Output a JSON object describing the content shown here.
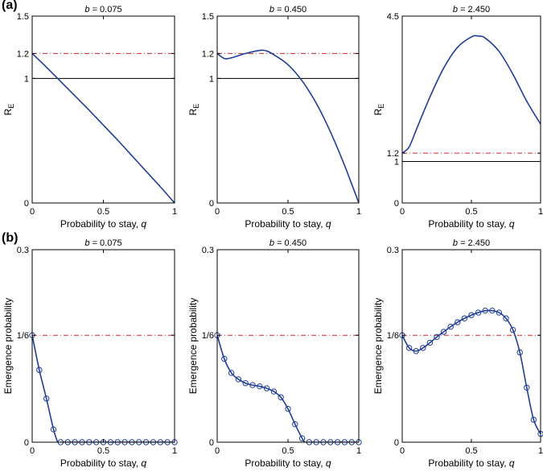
{
  "figure": {
    "row_labels": [
      "(a)",
      "(b)"
    ]
  },
  "colors": {
    "curve": "#1f3d99",
    "threshold": "#d62728",
    "axis": "#000000"
  },
  "chart_data": [
    {
      "type": "line",
      "row": 0,
      "col": 0,
      "title_prefix": "b",
      "title_value": " = 0.075",
      "xlabel_prefix": "Probability to stay, ",
      "xlabel_var": "q",
      "ylabel_main": "R",
      "ylabel_sub": "E",
      "xlim": [
        0,
        1
      ],
      "ylim": [
        0,
        1.5
      ],
      "xticks": [
        0,
        0.5,
        1
      ],
      "xticklabels": [
        "0",
        "0.5",
        "1"
      ],
      "yticks": [
        0,
        1,
        1.2,
        1.5
      ],
      "yticklabels": [
        "0",
        "1",
        "1.2",
        "1.5"
      ],
      "reference_lines": [
        {
          "y": 1.2,
          "style": "dashdot",
          "color": "threshold"
        },
        {
          "y": 1.0,
          "style": "solid",
          "color": "axis"
        }
      ],
      "series": [
        {
          "name": "R_E",
          "x": [
            0,
            0.1,
            0.2,
            0.3,
            0.4,
            0.5,
            0.6,
            0.7,
            0.8,
            0.9,
            1.0
          ],
          "y": [
            1.2,
            1.09,
            0.975,
            0.86,
            0.745,
            0.625,
            0.505,
            0.38,
            0.255,
            0.13,
            0.0
          ]
        }
      ]
    },
    {
      "type": "line",
      "row": 0,
      "col": 1,
      "title_prefix": "b",
      "title_value": " = 0.450",
      "xlabel_prefix": "Probability to stay, ",
      "xlabel_var": "q",
      "ylabel_main": "R",
      "ylabel_sub": "E",
      "xlim": [
        0,
        1
      ],
      "ylim": [
        0,
        1.5
      ],
      "xticks": [
        0,
        0.5,
        1
      ],
      "xticklabels": [
        "0",
        "0.5",
        "1"
      ],
      "yticks": [
        0,
        1,
        1.2,
        1.5
      ],
      "yticklabels": [
        "0",
        "1",
        "1.2",
        "1.5"
      ],
      "reference_lines": [
        {
          "y": 1.2,
          "style": "dashdot",
          "color": "threshold"
        },
        {
          "y": 1.0,
          "style": "solid",
          "color": "axis"
        }
      ],
      "series": [
        {
          "name": "R_E",
          "x": [
            0,
            0.05,
            0.1,
            0.2,
            0.3,
            0.35,
            0.4,
            0.5,
            0.6,
            0.7,
            0.8,
            0.9,
            1.0
          ],
          "y": [
            1.2,
            1.16,
            1.165,
            1.2,
            1.225,
            1.22,
            1.19,
            1.11,
            0.98,
            0.8,
            0.57,
            0.3,
            0.0
          ]
        }
      ]
    },
    {
      "type": "line",
      "row": 0,
      "col": 2,
      "title_prefix": "b",
      "title_value": " = 2.450",
      "xlabel_prefix": "Probability to stay, ",
      "xlabel_var": "q",
      "ylabel_main": "R",
      "ylabel_sub": "E",
      "xlim": [
        0,
        1
      ],
      "ylim": [
        0,
        4.5
      ],
      "xticks": [
        0,
        0.5,
        1
      ],
      "xticklabels": [
        "0",
        "0.5",
        "1"
      ],
      "yticks": [
        0,
        1,
        1.2,
        4.5
      ],
      "yticklabels": [
        "0",
        "1",
        "1.2",
        "4.5"
      ],
      "reference_lines": [
        {
          "y": 1.2,
          "style": "dashdot",
          "color": "threshold"
        },
        {
          "y": 1.0,
          "style": "solid",
          "color": "axis"
        }
      ],
      "series": [
        {
          "name": "R_E",
          "x": [
            0,
            0.05,
            0.1,
            0.2,
            0.3,
            0.4,
            0.5,
            0.55,
            0.6,
            0.7,
            0.8,
            0.9,
            1.0
          ],
          "y": [
            1.2,
            1.35,
            1.75,
            2.55,
            3.25,
            3.75,
            4.0,
            4.02,
            3.97,
            3.65,
            3.1,
            2.45,
            1.9
          ]
        }
      ]
    },
    {
      "type": "line",
      "row": 1,
      "col": 0,
      "title_prefix": "b",
      "title_value": " = 0.075",
      "xlabel_prefix": "Probability to stay, ",
      "xlabel_var": "q",
      "ylabel_main": "Emergence probability",
      "ylabel_sub": "",
      "xlim": [
        0,
        1
      ],
      "ylim": [
        0,
        0.3
      ],
      "xticks": [
        0,
        0.5,
        1
      ],
      "xticklabels": [
        "0",
        "0.5",
        "1"
      ],
      "yticks": [
        0,
        0.1667,
        0.3
      ],
      "yticklabels": [
        "0",
        "1/6",
        "0.3"
      ],
      "reference_lines": [
        {
          "y": 0.1667,
          "style": "dashdot",
          "color": "threshold"
        }
      ],
      "series": [
        {
          "name": "theory",
          "x": [
            0,
            0.05,
            0.1,
            0.15,
            0.18,
            0.2,
            0.25,
            0.3,
            0.35,
            0.4,
            0.45,
            0.5,
            0.55,
            0.6,
            0.65,
            0.7,
            0.75,
            0.8,
            0.85,
            0.9,
            0.95,
            1.0
          ],
          "y": [
            0.1667,
            0.1125,
            0.068,
            0.02,
            0.0,
            0.0,
            0.0,
            0.0,
            0.0,
            0.0,
            0.0,
            0.0,
            0.0,
            0.0,
            0.0,
            0.0,
            0.0,
            0.0,
            0.0,
            0.0,
            0.0,
            0.0
          ]
        }
      ],
      "markers": {
        "name": "simulation",
        "x": [
          0,
          0.05,
          0.1,
          0.15,
          0.2,
          0.25,
          0.3,
          0.35,
          0.4,
          0.45,
          0.5,
          0.55,
          0.6,
          0.65,
          0.7,
          0.75,
          0.8,
          0.85,
          0.9,
          0.95,
          1.0
        ],
        "y": [
          0.1667,
          0.1125,
          0.068,
          0.02,
          0.0,
          0.0,
          0.0,
          0.0,
          0.0,
          0.0,
          0.0,
          0.0,
          0.0,
          0.0,
          0.0,
          0.0,
          0.0,
          0.0,
          0.0,
          0.0,
          0.0
        ]
      }
    },
    {
      "type": "line",
      "row": 1,
      "col": 1,
      "title_prefix": "b",
      "title_value": " = 0.450",
      "xlabel_prefix": "Probability to stay, ",
      "xlabel_var": "q",
      "ylabel_main": "Emergence probability",
      "ylabel_sub": "",
      "xlim": [
        0,
        1
      ],
      "ylim": [
        0,
        0.3
      ],
      "xticks": [
        0,
        0.5,
        1
      ],
      "xticklabels": [
        "0",
        "0.5",
        "1"
      ],
      "yticks": [
        0,
        0.1667,
        0.3
      ],
      "yticklabels": [
        "0",
        "1/6",
        "0.3"
      ],
      "reference_lines": [
        {
          "y": 0.1667,
          "style": "dashdot",
          "color": "threshold"
        }
      ],
      "series": [
        {
          "name": "theory",
          "x": [
            0,
            0.05,
            0.1,
            0.15,
            0.2,
            0.25,
            0.3,
            0.35,
            0.4,
            0.45,
            0.5,
            0.55,
            0.6,
            0.62,
            0.65,
            0.7,
            0.75,
            0.8,
            0.85,
            0.9,
            0.95,
            1.0
          ],
          "y": [
            0.1667,
            0.13,
            0.108,
            0.098,
            0.092,
            0.089,
            0.087,
            0.084,
            0.079,
            0.07,
            0.052,
            0.028,
            0.006,
            0.0,
            0.0,
            0.0,
            0.0,
            0.0,
            0.0,
            0.0,
            0.0,
            0.0
          ]
        }
      ],
      "markers": {
        "name": "simulation",
        "x": [
          0,
          0.05,
          0.1,
          0.15,
          0.2,
          0.25,
          0.3,
          0.35,
          0.4,
          0.45,
          0.5,
          0.55,
          0.6,
          0.65,
          0.7,
          0.75,
          0.8,
          0.85,
          0.9,
          0.95,
          1.0
        ],
        "y": [
          0.1667,
          0.13,
          0.108,
          0.098,
          0.092,
          0.089,
          0.087,
          0.084,
          0.079,
          0.07,
          0.052,
          0.028,
          0.006,
          0.0,
          0.0,
          0.0,
          0.0,
          0.0,
          0.0,
          0.0,
          0.0
        ]
      }
    },
    {
      "type": "line",
      "row": 1,
      "col": 2,
      "title_prefix": "b",
      "title_value": " = 2.450",
      "xlabel_prefix": "Probability to stay, ",
      "xlabel_var": "q",
      "ylabel_main": "Emergence probability",
      "ylabel_sub": "",
      "xlim": [
        0,
        1
      ],
      "ylim": [
        0,
        0.3
      ],
      "xticks": [
        0,
        0.5,
        1
      ],
      "xticklabels": [
        "0",
        "0.5",
        "1"
      ],
      "yticks": [
        0,
        0.1667,
        0.3
      ],
      "yticklabels": [
        "0",
        "1/6",
        "0.3"
      ],
      "reference_lines": [
        {
          "y": 0.1667,
          "style": "dashdot",
          "color": "threshold"
        }
      ],
      "series": [
        {
          "name": "theory",
          "x": [
            0,
            0.05,
            0.1,
            0.15,
            0.2,
            0.25,
            0.3,
            0.35,
            0.4,
            0.45,
            0.5,
            0.55,
            0.6,
            0.65,
            0.7,
            0.75,
            0.8,
            0.85,
            0.9,
            0.95,
            1.0
          ],
          "y": [
            0.1667,
            0.147,
            0.142,
            0.147,
            0.155,
            0.164,
            0.172,
            0.18,
            0.187,
            0.193,
            0.198,
            0.202,
            0.205,
            0.205,
            0.202,
            0.193,
            0.175,
            0.14,
            0.085,
            0.035,
            0.013
          ]
        }
      ],
      "markers": {
        "name": "simulation",
        "x": [
          0,
          0.05,
          0.1,
          0.15,
          0.2,
          0.25,
          0.3,
          0.35,
          0.4,
          0.45,
          0.5,
          0.55,
          0.6,
          0.65,
          0.7,
          0.75,
          0.8,
          0.85,
          0.9,
          0.95,
          1.0
        ],
        "y": [
          0.1667,
          0.147,
          0.142,
          0.147,
          0.155,
          0.164,
          0.172,
          0.18,
          0.187,
          0.193,
          0.198,
          0.202,
          0.205,
          0.205,
          0.202,
          0.193,
          0.175,
          0.14,
          0.085,
          0.035,
          0.013
        ]
      }
    }
  ]
}
